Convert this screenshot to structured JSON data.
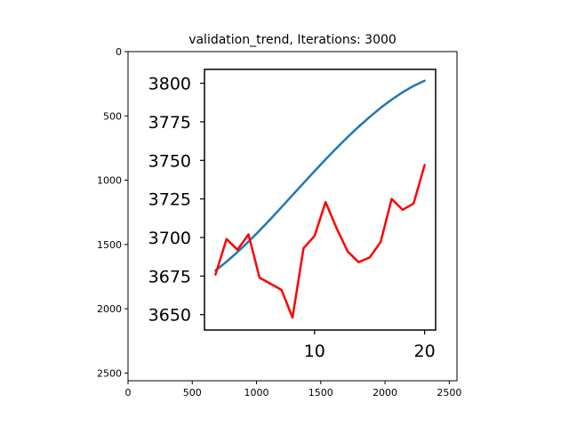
{
  "chart_data": [
    {
      "type": "image",
      "title": "validation_trend, Iterations: 3000",
      "x_ticks": [
        "0",
        "500",
        "1000",
        "1500",
        "2000",
        "2500"
      ],
      "y_ticks": [
        "0",
        "500",
        "1000",
        "1500",
        "2000",
        "2500"
      ],
      "xlim": [
        0,
        2560
      ],
      "ylim": [
        2560,
        0
      ],
      "x_tick_values": [
        0,
        500,
        1000,
        1500,
        2000,
        2500
      ],
      "y_tick_values": [
        0,
        500,
        1000,
        1500,
        2000,
        2500
      ]
    },
    {
      "type": "line",
      "x_ticks": [
        "10",
        "20"
      ],
      "x_tick_values": [
        10,
        20
      ],
      "y_ticks": [
        "3650",
        "3675",
        "3700",
        "3725",
        "3750",
        "3775",
        "3800"
      ],
      "y_tick_values": [
        3650,
        3675,
        3700,
        3725,
        3750,
        3775,
        3800
      ],
      "xlim": [
        0,
        21
      ],
      "ylim": [
        3640,
        3809
      ],
      "series": [
        {
          "color": "#1f77b4",
          "x": [
            1,
            2,
            3,
            4,
            5,
            6,
            7,
            8,
            9,
            10,
            11,
            12,
            13,
            14,
            15,
            16,
            17,
            18,
            19,
            20
          ],
          "values": [
            3678.6,
            3684.3,
            3690.5,
            3697.3,
            3704.5,
            3712.0,
            3719.7,
            3727.5,
            3735.3,
            3743.0,
            3750.6,
            3758.0,
            3765.1,
            3771.8,
            3778.1,
            3784.0,
            3789.4,
            3794.2,
            3798.3,
            3801.7
          ]
        },
        {
          "color": "#ff0000",
          "x": [
            1,
            2,
            3,
            4,
            5,
            6,
            7,
            8,
            9,
            10,
            11,
            12,
            13,
            14,
            15,
            16,
            17,
            18,
            19,
            20
          ],
          "values": [
            3676,
            3699,
            3692,
            3702,
            3674,
            3670,
            3666,
            3648,
            3693,
            3701,
            3723,
            3706,
            3691,
            3684,
            3687,
            3697,
            3725,
            3718,
            3722,
            3747
          ]
        }
      ]
    }
  ]
}
